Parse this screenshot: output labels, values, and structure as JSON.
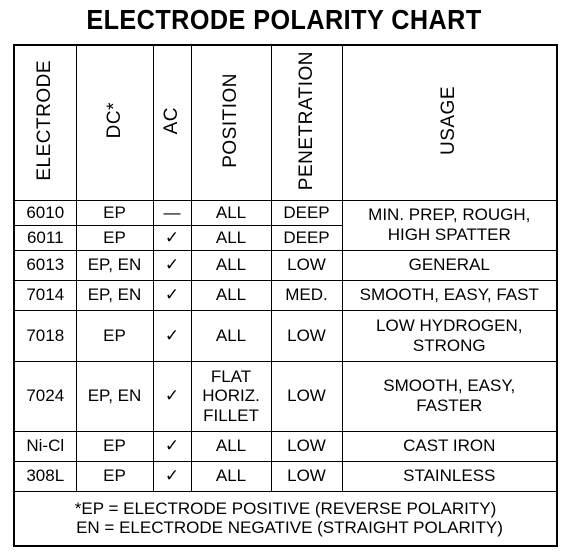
{
  "title": "ELECTRODE POLARITY CHART",
  "headers": {
    "electrode": "ELECTRODE",
    "dc": "DC*",
    "ac": "AC",
    "position": "POSITION",
    "penetration": "PENETRATION",
    "usage": "USAGE"
  },
  "rows": [
    {
      "electrode": "6010",
      "dc": "EP",
      "ac": "—",
      "position": "ALL",
      "penetration": "DEEP"
    },
    {
      "electrode": "6011",
      "dc": "EP",
      "ac": "✓",
      "position": "ALL",
      "penetration": "DEEP"
    },
    {
      "electrode": "6013",
      "dc": "EP, EN",
      "ac": "✓",
      "position": "ALL",
      "penetration": "LOW",
      "usage": "GENERAL"
    },
    {
      "electrode": "7014",
      "dc": "EP, EN",
      "ac": "✓",
      "position": "ALL",
      "penetration": "MED.",
      "usage": "SMOOTH, EASY, FAST"
    },
    {
      "electrode": "7018",
      "dc": "EP",
      "ac": "✓",
      "position": "ALL",
      "penetration": "LOW",
      "usage_1": "LOW HYDROGEN,",
      "usage_2": "STRONG"
    },
    {
      "electrode": "7024",
      "dc": "EP, EN",
      "ac": "✓",
      "position_1": "FLAT",
      "position_2": "HORIZ.",
      "position_3": "FILLET",
      "penetration": "LOW",
      "usage_1": "SMOOTH, EASY,",
      "usage_2": "FASTER"
    },
    {
      "electrode": "Ni-Cl",
      "dc": "EP",
      "ac": "✓",
      "position": "ALL",
      "penetration": "LOW",
      "usage": "CAST IRON"
    },
    {
      "electrode": "308L",
      "dc": "EP",
      "ac": "✓",
      "position": "ALL",
      "penetration": "LOW",
      "usage": "STAINLESS"
    }
  ],
  "merged_usage": {
    "line1": "MIN. PREP, ROUGH,",
    "line2": "HIGH SPATTER"
  },
  "footnote": {
    "line1": "*EP = ELECTRODE POSITIVE (REVERSE POLARITY)",
    "line2": "EN = ELECTRODE NEGATIVE (STRAIGHT POLARITY)"
  }
}
